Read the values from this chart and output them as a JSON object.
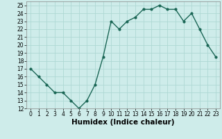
{
  "x": [
    0,
    1,
    2,
    3,
    4,
    5,
    6,
    7,
    8,
    9,
    10,
    11,
    12,
    13,
    14,
    15,
    16,
    17,
    18,
    19,
    20,
    21,
    22,
    23
  ],
  "y": [
    17,
    16,
    15,
    14,
    14,
    13,
    12,
    13,
    15,
    18.5,
    23,
    22,
    23,
    23.5,
    24.5,
    24.5,
    25,
    24.5,
    24.5,
    23,
    24,
    22,
    20,
    18.5
  ],
  "line_color": "#1a6655",
  "marker": "o",
  "marker_size": 2.0,
  "bg_color": "#ceecea",
  "grid_color": "#aed8d4",
  "xlabel": "Humidex (Indice chaleur)",
  "xlim": [
    -0.5,
    23.5
  ],
  "ylim": [
    12,
    25.5
  ],
  "yticks": [
    12,
    13,
    14,
    15,
    16,
    17,
    18,
    19,
    20,
    21,
    22,
    23,
    24,
    25
  ],
  "xticks": [
    0,
    1,
    2,
    3,
    4,
    5,
    6,
    7,
    8,
    9,
    10,
    11,
    12,
    13,
    14,
    15,
    16,
    17,
    18,
    19,
    20,
    21,
    22,
    23
  ],
  "tick_fontsize": 5.5,
  "xlabel_fontsize": 7.5,
  "line_width": 1.0
}
